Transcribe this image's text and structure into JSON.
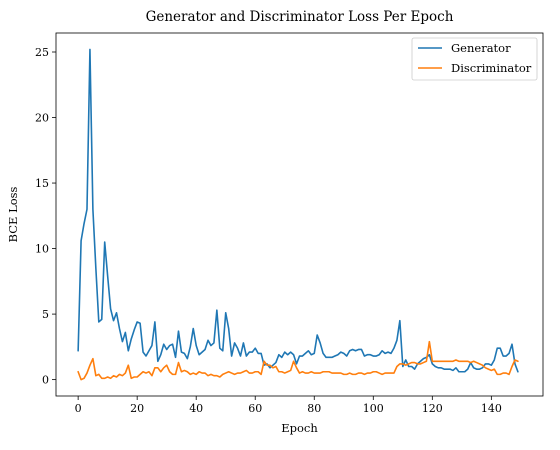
{
  "chart_data": {
    "type": "line",
    "title": "Generator and Discriminator Loss Per Epoch",
    "xlabel": "Epoch",
    "ylabel": "BCE Loss",
    "xlim": [
      -7.5,
      157.5
    ],
    "ylim": [
      -1.25,
      26.45
    ],
    "xticks": [
      0,
      20,
      40,
      60,
      80,
      100,
      120,
      140
    ],
    "yticks": [
      0,
      5,
      10,
      15,
      20,
      25
    ],
    "grid": false,
    "legend_position": "top-right",
    "series": [
      {
        "name": "Generator",
        "color": "#1f77b4",
        "values": [
          2.2,
          10.6,
          11.9,
          13.0,
          25.2,
          13.0,
          8.5,
          4.4,
          4.6,
          10.5,
          7.9,
          5.4,
          4.5,
          5.1,
          3.9,
          2.9,
          3.6,
          2.2,
          3.1,
          3.8,
          4.4,
          4.3,
          2.1,
          1.8,
          2.2,
          2.6,
          4.4,
          1.4,
          1.9,
          2.7,
          2.3,
          2.6,
          2.7,
          1.7,
          3.7,
          2.1,
          2.0,
          1.6,
          2.5,
          3.9,
          2.6,
          1.9,
          2.1,
          2.3,
          3.0,
          2.6,
          2.8,
          5.3,
          2.4,
          2.2,
          5.1,
          3.9,
          1.8,
          2.8,
          2.4,
          1.8,
          2.8,
          1.8,
          2.1,
          2.1,
          2.4,
          2.0,
          2.0,
          1.1,
          1.2,
          0.9,
          1.1,
          1.3,
          1.9,
          1.7,
          2.1,
          1.9,
          2.1,
          1.9,
          1.2,
          1.8,
          1.8,
          2.0,
          2.2,
          1.9,
          2.0,
          3.4,
          2.8,
          2.0,
          1.7,
          1.7,
          1.7,
          1.8,
          1.9,
          2.1,
          2.0,
          1.8,
          2.2,
          2.3,
          2.2,
          2.3,
          2.3,
          1.8,
          1.9,
          1.9,
          1.8,
          1.8,
          1.9,
          2.2,
          2.0,
          2.1,
          2.0,
          2.4,
          3.0,
          4.5,
          1.0,
          1.5,
          1.0,
          1.0,
          0.8,
          1.2,
          1.4,
          1.6,
          1.7,
          1.9,
          1.2,
          1.0,
          0.9,
          0.9,
          0.8,
          0.8,
          0.8,
          0.7,
          0.9,
          0.6,
          0.6,
          0.6,
          0.8,
          1.3,
          0.9,
          0.8,
          0.8,
          0.9,
          1.2,
          1.2,
          1.1,
          1.5,
          2.4,
          2.4,
          1.8,
          1.8,
          2.0,
          2.7,
          1.2,
          0.6
        ]
      },
      {
        "name": "Discriminator",
        "color": "#ff7f0e",
        "values": [
          0.6,
          0.0,
          0.1,
          0.5,
          1.1,
          1.6,
          0.3,
          0.4,
          0.1,
          0.1,
          0.2,
          0.1,
          0.3,
          0.2,
          0.4,
          0.3,
          0.5,
          1.1,
          0.1,
          0.2,
          0.2,
          0.4,
          0.6,
          0.5,
          0.6,
          0.3,
          0.9,
          0.9,
          0.6,
          0.9,
          1.1,
          0.6,
          0.4,
          0.4,
          1.3,
          0.6,
          0.7,
          0.6,
          0.4,
          0.5,
          0.4,
          0.6,
          0.5,
          0.5,
          0.3,
          0.4,
          0.3,
          0.3,
          0.2,
          0.4,
          0.5,
          0.6,
          0.5,
          0.4,
          0.5,
          0.5,
          0.6,
          0.7,
          0.5,
          0.5,
          0.6,
          0.6,
          0.4,
          1.4,
          1.1,
          1.1,
          0.9,
          1.0,
          0.6,
          0.6,
          0.5,
          0.6,
          0.7,
          1.4,
          0.9,
          0.5,
          0.6,
          0.5,
          0.5,
          0.6,
          0.5,
          0.5,
          0.5,
          0.6,
          0.6,
          0.6,
          0.5,
          0.5,
          0.5,
          0.5,
          0.4,
          0.4,
          0.5,
          0.4,
          0.4,
          0.5,
          0.5,
          0.4,
          0.5,
          0.5,
          0.6,
          0.6,
          0.5,
          0.4,
          0.5,
          0.5,
          0.5,
          0.5,
          1.0,
          1.2,
          1.2,
          1.1,
          1.2,
          1.3,
          1.3,
          1.2,
          1.2,
          1.3,
          1.4,
          2.9,
          1.4,
          1.4,
          1.4,
          1.4,
          1.4,
          1.4,
          1.4,
          1.4,
          1.5,
          1.4,
          1.4,
          1.4,
          1.4,
          1.3,
          1.4,
          1.3,
          1.2,
          1.1,
          0.9,
          0.8,
          0.7,
          0.8,
          0.4,
          0.4,
          0.5,
          0.5,
          0.4,
          1.0,
          1.5,
          1.4
        ]
      }
    ]
  }
}
